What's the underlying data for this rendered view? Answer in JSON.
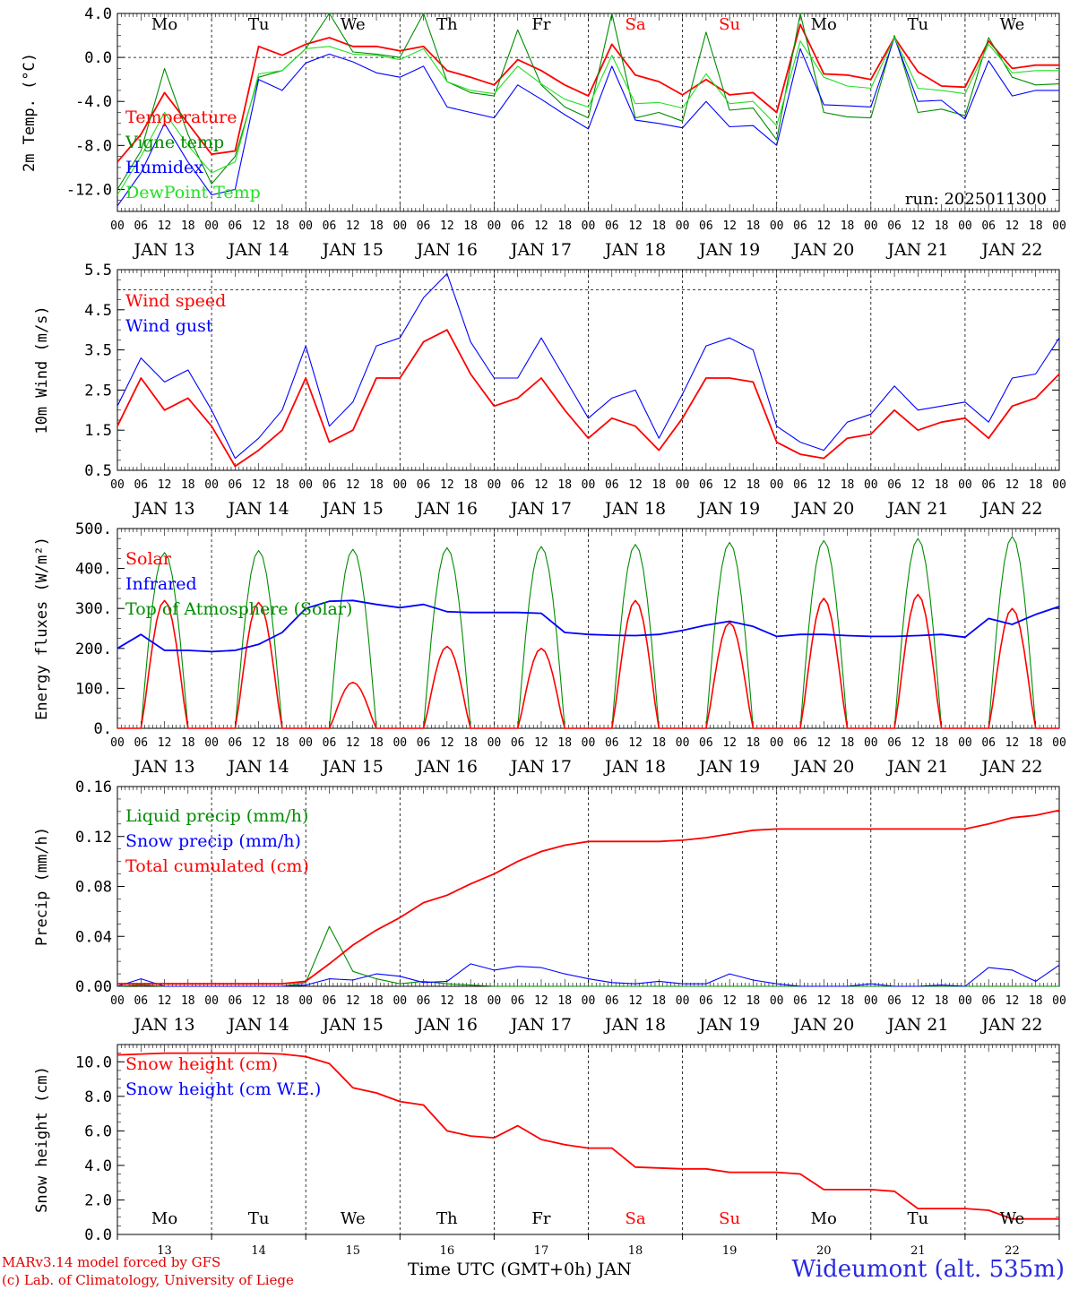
{
  "footer": {
    "credit_line1": "MARv3.14 model forced by GFS",
    "credit_line2": "(c) Lab. of Climatology, University of Liege",
    "station": "Wideumont (alt. 535m)",
    "xaxis_title": "Time UTC (GMT+0h) JAN"
  },
  "colors": {
    "red": "#ff0000",
    "green": "#008c00",
    "blue": "#0000ff",
    "lightgreen": "#22e022",
    "axis": "#000000"
  },
  "day_labels": [
    "Mo",
    "Tu",
    "We",
    "Th",
    "Fr",
    "Sa",
    "Su",
    "Mo",
    "Tu",
    "We"
  ],
  "day_label_colors": [
    "#000000",
    "#000000",
    "#000000",
    "#000000",
    "#000000",
    "#ff0000",
    "#ff0000",
    "#000000",
    "#000000",
    "#000000"
  ],
  "date_labels": [
    "JAN 13",
    "JAN 14",
    "JAN 15",
    "JAN 16",
    "JAN 17",
    "JAN 18",
    "JAN 19",
    "JAN 20",
    "JAN 21",
    "JAN 22"
  ],
  "hour_labels": [
    "00",
    "06",
    "12",
    "18"
  ],
  "day_numbers": [
    "13",
    "14",
    "15",
    "16",
    "17",
    "18",
    "19",
    "20",
    "21",
    "22"
  ],
  "chart_data": [
    {
      "type": "line",
      "ylabel": "2m Temp. (°C)",
      "ylim": [
        -14,
        4
      ],
      "yticks": [
        "4.0",
        "0.0",
        "-4.0",
        "-8.0",
        "-12.0"
      ],
      "ytick_values": [
        4,
        0,
        -4,
        -8,
        -12
      ],
      "ref_line": 0,
      "annotation": "run: 2025011300",
      "x_hours": [
        0,
        6,
        12,
        18,
        24,
        30,
        36,
        42,
        48,
        54,
        60,
        66,
        72,
        78,
        84,
        90,
        96,
        102,
        108,
        114,
        120,
        126,
        132,
        138,
        144,
        150,
        156,
        162,
        168,
        174,
        180,
        186,
        192,
        198,
        204,
        210,
        216,
        222,
        228,
        234,
        240
      ],
      "series": [
        {
          "name": "Temperature",
          "color": "#ff0000",
          "values": [
            -9.5,
            -7,
            -3.2,
            -6,
            -8.8,
            -8.5,
            1,
            0.2,
            1.2,
            1.8,
            1.0,
            1.0,
            0.6,
            1.0,
            -1.2,
            -1.8,
            -2.5,
            -0.2,
            -1.2,
            -2.5,
            -3.5,
            1.2,
            -1.6,
            -2.2,
            -3.4,
            -2.0,
            -3.4,
            -3.2,
            -5,
            3,
            -1.5,
            -1.6,
            -2.0,
            1.8,
            -1.3,
            -2.6,
            -2.7,
            1.5,
            -1,
            -0.7,
            -0.7
          ]
        },
        {
          "name": "Vigne temp",
          "color": "#008c00",
          "values": [
            -12,
            -8.5,
            -1,
            -7,
            -11.5,
            -9,
            -1.8,
            -1.2,
            0.8,
            4,
            0.5,
            0.3,
            0,
            4,
            -2.2,
            -3.2,
            -3.5,
            2.5,
            -2.5,
            -4.5,
            -5.5,
            4,
            -5.5,
            -5,
            -5.8,
            2.3,
            -4.8,
            -4.6,
            -7.5,
            4,
            -5,
            -5.4,
            -5.5,
            2,
            -5,
            -4.7,
            -5.3,
            1.8,
            -1.8,
            -2.5,
            -2.4
          ]
        },
        {
          "name": "Humidex",
          "color": "#0000ff",
          "values": [
            -13.5,
            -10.5,
            -6,
            -9.5,
            -12.5,
            -12,
            -2,
            -3,
            -0.5,
            0.3,
            -0.4,
            -1.4,
            -1.8,
            -0.8,
            -4.5,
            -5,
            -5.5,
            -2.5,
            -3.8,
            -5.2,
            -6.5,
            -0.8,
            -5.7,
            -6,
            -6.4,
            -4,
            -6.3,
            -6.2,
            -8,
            0.8,
            -4.3,
            -4.4,
            -4.5,
            1.8,
            -4,
            -3.9,
            -5.6,
            -0.3,
            -3.5,
            -3,
            -3
          ]
        },
        {
          "name": "DewPoint Temp",
          "color": "#22e022",
          "values": [
            -12.5,
            -9,
            -5,
            -8,
            -10.5,
            -9.5,
            -1.5,
            -1.2,
            0.8,
            1.0,
            0.3,
            0.2,
            -0.2,
            0.8,
            -2.2,
            -3.0,
            -3.3,
            -0.8,
            -2.4,
            -3.8,
            -4.5,
            0.2,
            -4.2,
            -4.1,
            -4.6,
            -1.5,
            -4.2,
            -4.0,
            -6.2,
            1.5,
            -1.8,
            -2.6,
            -2.8,
            1.8,
            -2.8,
            -3.0,
            -3.3,
            1.2,
            -1.4,
            -1.2,
            -1.2
          ]
        }
      ]
    },
    {
      "type": "line",
      "ylabel": "10m Wind (m/s)",
      "ylim": [
        0.5,
        5.5
      ],
      "yticks": [
        "5.5",
        "4.5",
        "3.5",
        "2.5",
        "1.5",
        "0.5"
      ],
      "ytick_values": [
        5.5,
        4.5,
        3.5,
        2.5,
        1.5,
        0.5
      ],
      "ref_line": 5,
      "x_hours": [
        0,
        6,
        12,
        18,
        24,
        30,
        36,
        42,
        48,
        54,
        60,
        66,
        72,
        78,
        84,
        90,
        96,
        102,
        108,
        114,
        120,
        126,
        132,
        138,
        144,
        150,
        156,
        162,
        168,
        174,
        180,
        186,
        192,
        198,
        204,
        210,
        216,
        222,
        228,
        234,
        240
      ],
      "series": [
        {
          "name": "Wind speed",
          "color": "#ff0000",
          "values": [
            1.6,
            2.8,
            2.0,
            2.3,
            1.6,
            0.6,
            1.0,
            1.5,
            2.8,
            1.2,
            1.5,
            2.8,
            2.8,
            3.7,
            4.0,
            2.9,
            2.1,
            2.3,
            2.8,
            2.0,
            1.3,
            1.8,
            1.6,
            1.0,
            1.8,
            2.8,
            2.8,
            2.7,
            1.2,
            0.9,
            0.8,
            1.3,
            1.4,
            2.0,
            1.5,
            1.7,
            1.8,
            1.3,
            2.1,
            2.3,
            2.9
          ]
        },
        {
          "name": "Wind gust",
          "color": "#0000ff",
          "values": [
            2.1,
            3.3,
            2.7,
            3.0,
            2.0,
            0.8,
            1.3,
            2.0,
            3.6,
            1.6,
            2.2,
            3.6,
            3.8,
            4.8,
            5.4,
            3.7,
            2.8,
            2.8,
            3.8,
            2.8,
            1.8,
            2.3,
            2.5,
            1.3,
            2.4,
            3.6,
            3.8,
            3.5,
            1.6,
            1.2,
            1.0,
            1.7,
            1.9,
            2.6,
            2.0,
            2.1,
            2.2,
            1.7,
            2.8,
            2.9,
            3.8
          ]
        }
      ]
    },
    {
      "type": "line",
      "ylabel": "Energy fluxes (W/m²)",
      "ylim": [
        0,
        500
      ],
      "yticks": [
        "500.",
        "400.",
        "300.",
        "200.",
        "100.",
        "0."
      ],
      "ytick_values": [
        500,
        400,
        300,
        200,
        100,
        0
      ],
      "peaks": {
        "solar": [
          320,
          315,
          115,
          205,
          200,
          320,
          265,
          325,
          335,
          300
        ],
        "toa": [
          440,
          445,
          448,
          452,
          455,
          460,
          465,
          470,
          475,
          480
        ]
      },
      "x_hours": [
        0,
        6,
        12,
        18,
        24,
        30,
        36,
        42,
        48,
        54,
        60,
        66,
        72,
        78,
        84,
        90,
        96,
        102,
        108,
        114,
        120,
        126,
        132,
        138,
        144,
        150,
        156,
        162,
        168,
        174,
        180,
        186,
        192,
        198,
        204,
        210,
        216,
        222,
        228,
        234,
        240
      ],
      "series": [
        {
          "name": "Solar",
          "color": "#ff0000"
        },
        {
          "name": "Infrared",
          "color": "#0000ff",
          "values": [
            200,
            235,
            195,
            195,
            192,
            195,
            210,
            240,
            300,
            318,
            320,
            310,
            302,
            310,
            292,
            290,
            290,
            290,
            288,
            240,
            235,
            233,
            232,
            235,
            245,
            258,
            268,
            255,
            230,
            235,
            235,
            232,
            230,
            230,
            232,
            235,
            228,
            275,
            260,
            285,
            305
          ]
        },
        {
          "name": "Top of Atmosphere (Solar)",
          "color": "#008c00"
        }
      ]
    },
    {
      "type": "line",
      "ylabel": "Precip (mm/h)",
      "ylim": [
        0,
        0.16
      ],
      "yticks": [
        "0.16",
        "0.12",
        "0.08",
        "0.04",
        "0.00"
      ],
      "ytick_values": [
        0.16,
        0.12,
        0.08,
        0.04,
        0.0
      ],
      "x_hours": [
        0,
        6,
        12,
        18,
        24,
        30,
        36,
        42,
        48,
        54,
        60,
        66,
        72,
        78,
        84,
        90,
        96,
        102,
        108,
        114,
        120,
        126,
        132,
        138,
        144,
        150,
        156,
        162,
        168,
        174,
        180,
        186,
        192,
        198,
        204,
        210,
        216,
        222,
        228,
        234,
        240
      ],
      "series": [
        {
          "name": "Liquid precip (mm/h)",
          "color": "#008c00",
          "values": [
            0,
            0.001,
            0,
            0,
            0,
            0,
            0,
            0,
            0.003,
            0.048,
            0.012,
            0.006,
            0.002,
            0.004,
            0.002,
            0.001,
            0,
            0,
            0,
            0,
            0,
            0,
            0,
            0,
            0,
            0,
            0,
            0,
            0,
            0,
            0,
            0,
            0,
            0,
            0,
            0,
            0,
            0,
            0,
            0,
            0
          ]
        },
        {
          "name": "Snow precip (mm/h)",
          "color": "#0000ff",
          "values": [
            0,
            0.006,
            0,
            0,
            0,
            0,
            0,
            0,
            0.001,
            0.006,
            0.005,
            0.01,
            0.008,
            0.003,
            0.004,
            0.018,
            0.013,
            0.016,
            0.015,
            0.01,
            0.006,
            0.003,
            0.002,
            0.004,
            0.002,
            0.002,
            0.01,
            0.005,
            0.002,
            0,
            0,
            0,
            0.002,
            0,
            0,
            0.001,
            0,
            0.015,
            0.013,
            0.004,
            0.017
          ]
        },
        {
          "name": "Total cumulated (cm)",
          "color": "#ff0000",
          "values": [
            0.002,
            0.002,
            0.002,
            0.002,
            0.002,
            0.002,
            0.002,
            0.002,
            0.004,
            0.018,
            0.033,
            0.045,
            0.055,
            0.067,
            0.073,
            0.082,
            0.09,
            0.1,
            0.108,
            0.113,
            0.116,
            0.116,
            0.116,
            0.116,
            0.117,
            0.119,
            0.122,
            0.125,
            0.126,
            0.126,
            0.126,
            0.126,
            0.126,
            0.126,
            0.126,
            0.126,
            0.126,
            0.13,
            0.135,
            0.137,
            0.141
          ]
        }
      ]
    },
    {
      "type": "line",
      "ylabel": "Snow height (cm)",
      "ylim": [
        0,
        11
      ],
      "yticks": [
        "10.0",
        "8.0",
        "6.0",
        "4.0",
        "2.0",
        "0.0"
      ],
      "ytick_values": [
        10,
        8,
        6,
        4,
        2,
        0
      ],
      "x_hours": [
        0,
        6,
        12,
        18,
        24,
        30,
        36,
        42,
        48,
        54,
        60,
        66,
        72,
        78,
        84,
        90,
        96,
        102,
        108,
        114,
        120,
        126,
        132,
        138,
        144,
        150,
        156,
        162,
        168,
        174,
        180,
        186,
        192,
        198,
        204,
        210,
        216,
        222,
        228,
        234,
        240
      ],
      "series": [
        {
          "name": "Snow height (cm)",
          "color": "#ff0000",
          "values": [
            10.4,
            10.45,
            10.5,
            10.5,
            10.5,
            10.5,
            10.5,
            10.45,
            10.3,
            9.9,
            8.5,
            8.2,
            7.7,
            7.5,
            6.0,
            5.7,
            5.6,
            6.3,
            5.5,
            5.2,
            5.0,
            5.0,
            3.9,
            3.85,
            3.8,
            3.8,
            3.6,
            3.6,
            3.6,
            3.5,
            2.6,
            2.6,
            2.6,
            2.5,
            1.5,
            1.5,
            1.5,
            1.4,
            0.9,
            0.9,
            0.9
          ]
        },
        {
          "name": "Snow height (cm W.E.)",
          "color": "#0000ff",
          "values": []
        }
      ]
    }
  ]
}
